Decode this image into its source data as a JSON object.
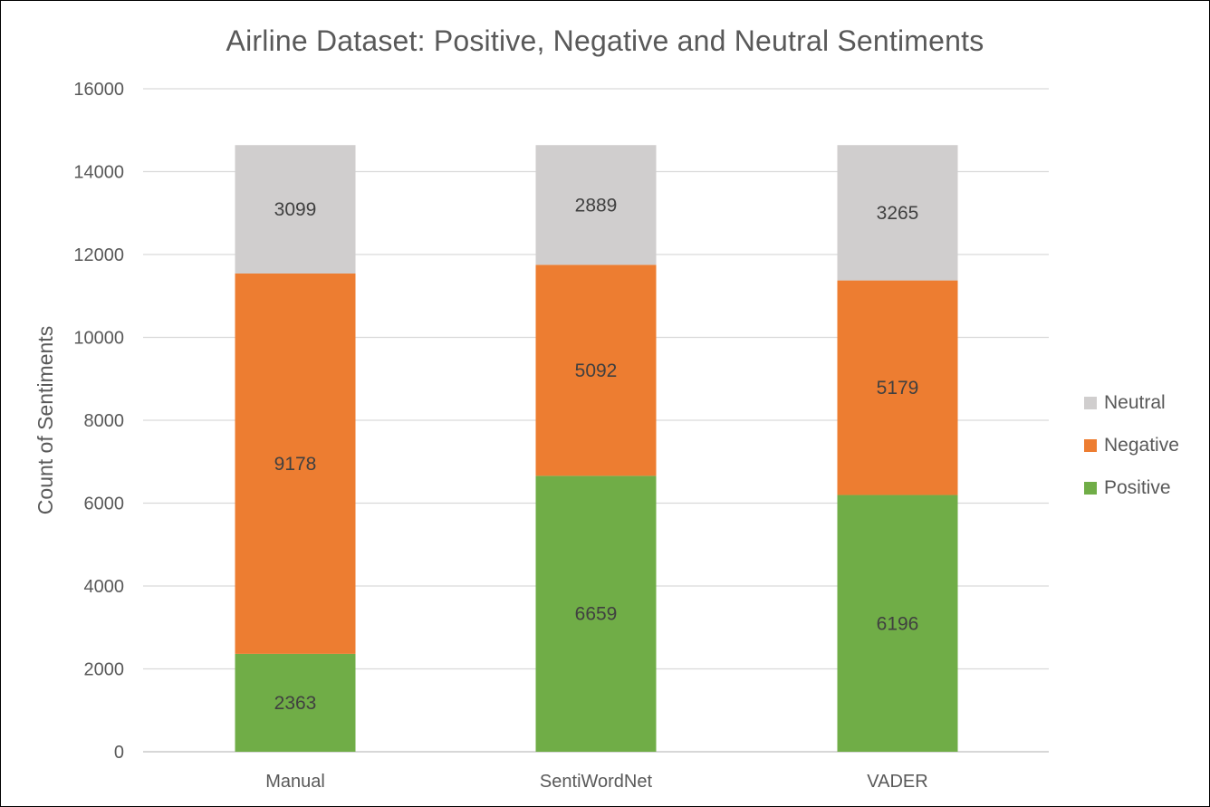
{
  "chart_data": {
    "type": "bar",
    "stacked": true,
    "title": "Airline Dataset: Positive, Negative and Neutral Sentiments",
    "xlabel": "",
    "ylabel": "Count of Sentiments",
    "ylim": [
      0,
      16000
    ],
    "yticks": [
      0,
      2000,
      4000,
      6000,
      8000,
      10000,
      12000,
      14000,
      16000
    ],
    "grid": true,
    "legend_position": "right",
    "categories": [
      "Manual",
      "SentiWordNet",
      "VADER"
    ],
    "series": [
      {
        "name": "Positive",
        "color": "#70ad47",
        "values": [
          2363,
          6659,
          6196
        ]
      },
      {
        "name": "Negative",
        "color": "#ed7d31",
        "values": [
          9178,
          5092,
          5179
        ]
      },
      {
        "name": "Neutral",
        "color": "#d0cece",
        "values": [
          3099,
          2889,
          3265
        ]
      }
    ]
  }
}
